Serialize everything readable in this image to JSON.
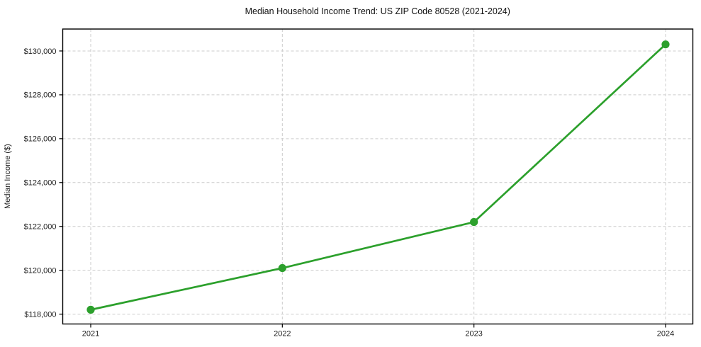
{
  "figure": {
    "background_color": "#ffffff"
  },
  "chart_data": {
    "type": "line",
    "title": "Median Household Income Trend: US ZIP Code 80528 (2021-2024)",
    "xlabel": "",
    "ylabel": "Median Income ($)",
    "x": [
      2021,
      2022,
      2023,
      2024
    ],
    "x_tick_labels": [
      "2021",
      "2022",
      "2023",
      "2024"
    ],
    "series": [
      {
        "values": [
          118200,
          120100,
          122200,
          130300
        ],
        "color": "#2ca02c",
        "marker": "circle",
        "line_width": 2.7,
        "marker_radius": 5.6
      }
    ],
    "y_ticks": [
      118000,
      120000,
      122000,
      124000,
      126000,
      128000,
      130000
    ],
    "y_tick_labels": [
      "$118,000",
      "$120,000",
      "$122,000",
      "$124,000",
      "$126,000",
      "$128,000",
      "$130,000"
    ],
    "ylim": [
      117550,
      131000
    ],
    "grid": true,
    "grid_line_style": "dashed",
    "grid_color": "#cccccc",
    "spine_color": "#000000",
    "tick_color": "#000000",
    "text_color": "#222222",
    "legend_position": "none"
  }
}
